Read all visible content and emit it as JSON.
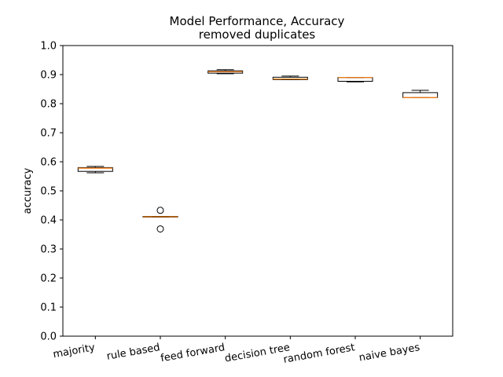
{
  "chart_data": {
    "type": "box",
    "title": "Model Performance, Accuracy",
    "subtitle": "removed duplicates",
    "xlabel": "",
    "ylabel": "accuracy",
    "ylim": [
      0.0,
      1.0
    ],
    "yticks": [
      "0.0",
      "0.1",
      "0.2",
      "0.3",
      "0.4",
      "0.5",
      "0.6",
      "0.7",
      "0.8",
      "0.9",
      "1.0"
    ],
    "grid": false,
    "categories": [
      "majority",
      "rule based",
      "feed forward",
      "decision tree",
      "random forest",
      "naive bayes"
    ],
    "boxes": [
      {
        "category": "majority",
        "whisker_low": 0.562,
        "q1": 0.567,
        "median": 0.578,
        "q3": 0.58,
        "whisker_high": 0.584,
        "outliers": []
      },
      {
        "category": "rule based",
        "whisker_low": 0.41,
        "q1": 0.41,
        "median": 0.411,
        "q3": 0.412,
        "whisker_high": 0.412,
        "outliers": [
          0.433,
          0.369
        ]
      },
      {
        "category": "feed forward",
        "whisker_low": 0.903,
        "q1": 0.905,
        "median": 0.91,
        "q3": 0.913,
        "whisker_high": 0.917,
        "outliers": []
      },
      {
        "category": "decision tree",
        "whisker_low": 0.883,
        "q1": 0.883,
        "median": 0.885,
        "q3": 0.891,
        "whisker_high": 0.895,
        "outliers": []
      },
      {
        "category": "random forest",
        "whisker_low": 0.875,
        "q1": 0.877,
        "median": 0.89,
        "q3": 0.89,
        "whisker_high": 0.89,
        "outliers": []
      },
      {
        "category": "naive bayes",
        "whisker_low": 0.821,
        "q1": 0.821,
        "median": 0.821,
        "q3": 0.838,
        "whisker_high": 0.846,
        "outliers": []
      }
    ],
    "colors": {
      "box": "#000000",
      "median": "#ff7f0e",
      "outlier": "#000000"
    }
  }
}
